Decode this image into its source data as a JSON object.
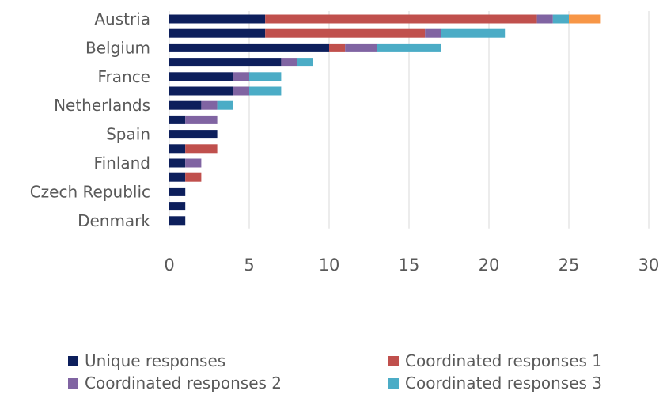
{
  "chart_data": {
    "type": "bar",
    "orientation": "horizontal",
    "stacked": true,
    "categories": [
      "Austria",
      "",
      "Belgium",
      "",
      "France",
      "",
      "Netherlands",
      "",
      "Spain",
      "",
      "Finland",
      "",
      "Czech Republic",
      "",
      "Denmark"
    ],
    "series": [
      {
        "name": "Unique responses",
        "color": "#0d1f5c",
        "values": [
          6,
          6,
          10,
          7,
          4,
          4,
          2,
          1,
          3,
          1,
          1,
          1,
          1,
          1,
          1
        ]
      },
      {
        "name": "Coordinated responses 1",
        "color": "#c0504d",
        "values": [
          17,
          10,
          1,
          0,
          0,
          0,
          0,
          0,
          0,
          2,
          0,
          1,
          0,
          0,
          0
        ]
      },
      {
        "name": "Coordinated responses 2",
        "color": "#8064a2",
        "values": [
          1,
          1,
          2,
          1,
          1,
          1,
          1,
          2,
          0,
          0,
          1,
          0,
          0,
          0,
          0
        ]
      },
      {
        "name": "Coordinated responses 3",
        "color": "#4bacc6",
        "values": [
          1,
          4,
          4,
          1,
          2,
          2,
          1,
          0,
          0,
          0,
          0,
          0,
          0,
          0,
          0
        ]
      },
      {
        "color": "#f79646",
        "values": [
          2,
          0,
          0,
          0,
          0,
          0,
          0,
          0,
          0,
          0,
          0,
          0,
          0,
          0,
          0
        ]
      }
    ],
    "xlim": [
      0,
      30
    ],
    "xticks": [
      0,
      5,
      10,
      15,
      20,
      25,
      30
    ],
    "grid": true,
    "legend_position": "bottom"
  }
}
